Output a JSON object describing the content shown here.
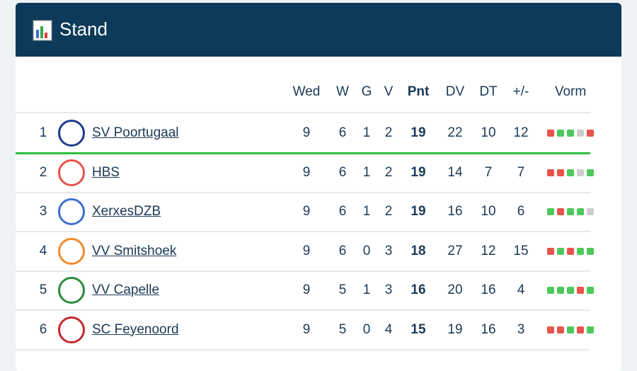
{
  "header": {
    "title": "Stand"
  },
  "table": {
    "columns": [
      "Wed",
      "W",
      "G",
      "V",
      "Pnt",
      "DV",
      "DT",
      "+/-",
      "Vorm"
    ],
    "rows": [
      {
        "rank": 1,
        "team": "SV Poortugaal",
        "stats": [
          9,
          6,
          1,
          2,
          19,
          22,
          10,
          12
        ],
        "form": [
          "#e8534a",
          "#4cc95a",
          "#4cc95a",
          "#cccccc",
          "#e8534a"
        ]
      },
      {
        "rank": 2,
        "team": "HBS",
        "stats": [
          9,
          6,
          1,
          2,
          19,
          14,
          7,
          7
        ],
        "form": [
          "#e8534a",
          "#e8534a",
          "#4cc95a",
          "#cccccc",
          "#4cc95a"
        ]
      },
      {
        "rank": 3,
        "team": "XerxesDZB",
        "stats": [
          9,
          6,
          1,
          2,
          19,
          16,
          10,
          6
        ],
        "form": [
          "#4cc95a",
          "#e8534a",
          "#4cc95a",
          "#4cc95a",
          "#cccccc"
        ]
      },
      {
        "rank": 4,
        "team": "VV Smitshoek",
        "stats": [
          9,
          6,
          0,
          3,
          18,
          27,
          12,
          15
        ],
        "form": [
          "#e8534a",
          "#4cc95a",
          "#e8534a",
          "#4cc95a",
          "#4cc95a"
        ]
      },
      {
        "rank": 5,
        "team": "VV Capelle",
        "stats": [
          9,
          5,
          1,
          3,
          16,
          20,
          16,
          4
        ],
        "form": [
          "#4cc95a",
          "#4cc95a",
          "#4cc95a",
          "#e8534a",
          "#4cc95a"
        ]
      },
      {
        "rank": 6,
        "team": "SC Feyenoord",
        "stats": [
          9,
          5,
          0,
          4,
          15,
          19,
          16,
          3
        ],
        "form": [
          "#e8534a",
          "#e8534a",
          "#4cc95a",
          "#e8534a",
          "#4cc95a"
        ]
      }
    ]
  }
}
